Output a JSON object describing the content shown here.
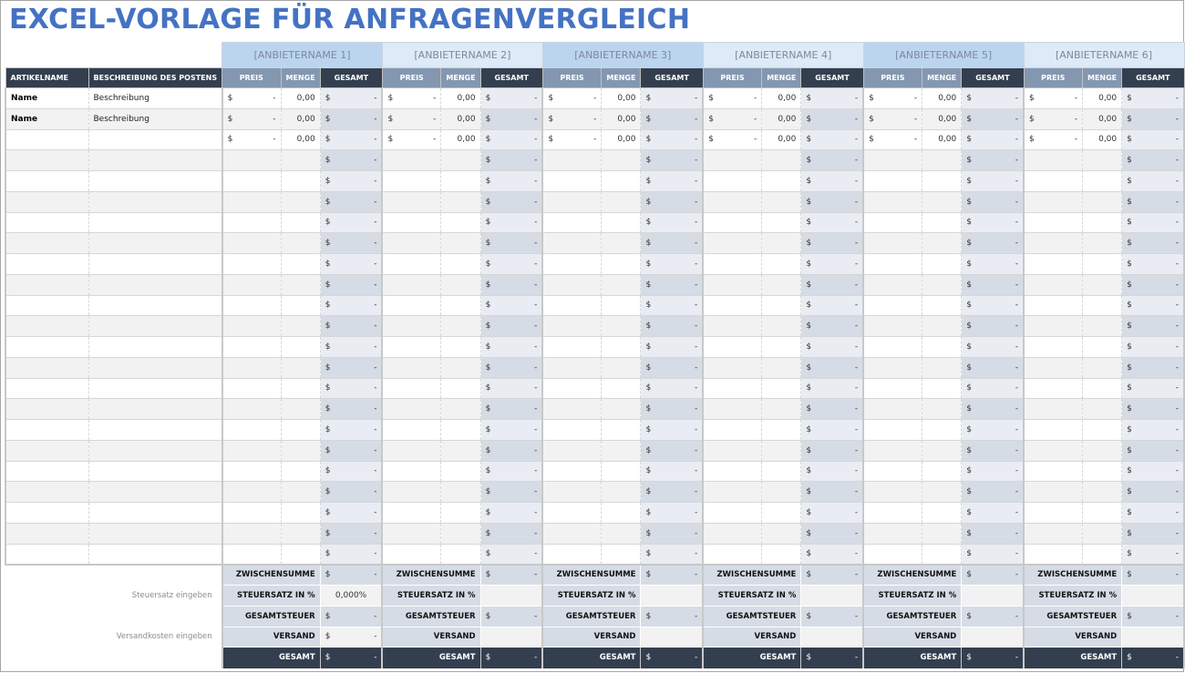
{
  "title": "EXCEL-VORLAGE FÜR ANFRAGENVERGLEICH",
  "headers": {
    "artikelname": "ARTIKELNAME",
    "beschreibung": "BESCHREIBUNG DES POSTENS",
    "preis": "PREIS",
    "menge": "MENGE",
    "gesamt": "GESAMT"
  },
  "suppliers": [
    {
      "name": "[ANBIETERNAME 1]"
    },
    {
      "name": "[ANBIETERNAME 2]"
    },
    {
      "name": "[ANBIETERNAME 3]"
    },
    {
      "name": "[ANBIETERNAME 4]"
    },
    {
      "name": "[ANBIETERNAME 5]"
    },
    {
      "name": "[ANBIETERNAME 6]"
    }
  ],
  "rows": [
    {
      "name": "Name",
      "desc": "Beschreibung",
      "price_dollar": "$",
      "price": "-",
      "qty": "0,00"
    },
    {
      "name": "Name",
      "desc": "Beschreibung",
      "price_dollar": "$",
      "price": "-",
      "qty": "0,00"
    },
    {
      "name": "",
      "desc": "",
      "price_dollar": "$",
      "price": "-",
      "qty": "0,00"
    }
  ],
  "empty_rows_count": 20,
  "currency": {
    "symbol": "$",
    "dash": "-"
  },
  "summary": {
    "zwischensumme": "ZWISCHENSUMME",
    "steuersatz": "STEUERSATZ IN %",
    "gesamtsteuer": "GESAMTSTEUER",
    "versand": "VERSAND",
    "gesamt": "GESAMT",
    "steuersatz_note": "Steuersatz eingeben",
    "versand_note": "Versandkosten eingeben",
    "tax_rate_value": "0,000%"
  },
  "colors": {
    "title": "#4472c4",
    "header_dark": "#333f4f",
    "header_mid": "#8497b0",
    "supplier_odd": "#bcd5ee",
    "supplier_even": "#ddeaf7",
    "total_light": "#e9edf3",
    "total_dark": "#d6dce5"
  }
}
